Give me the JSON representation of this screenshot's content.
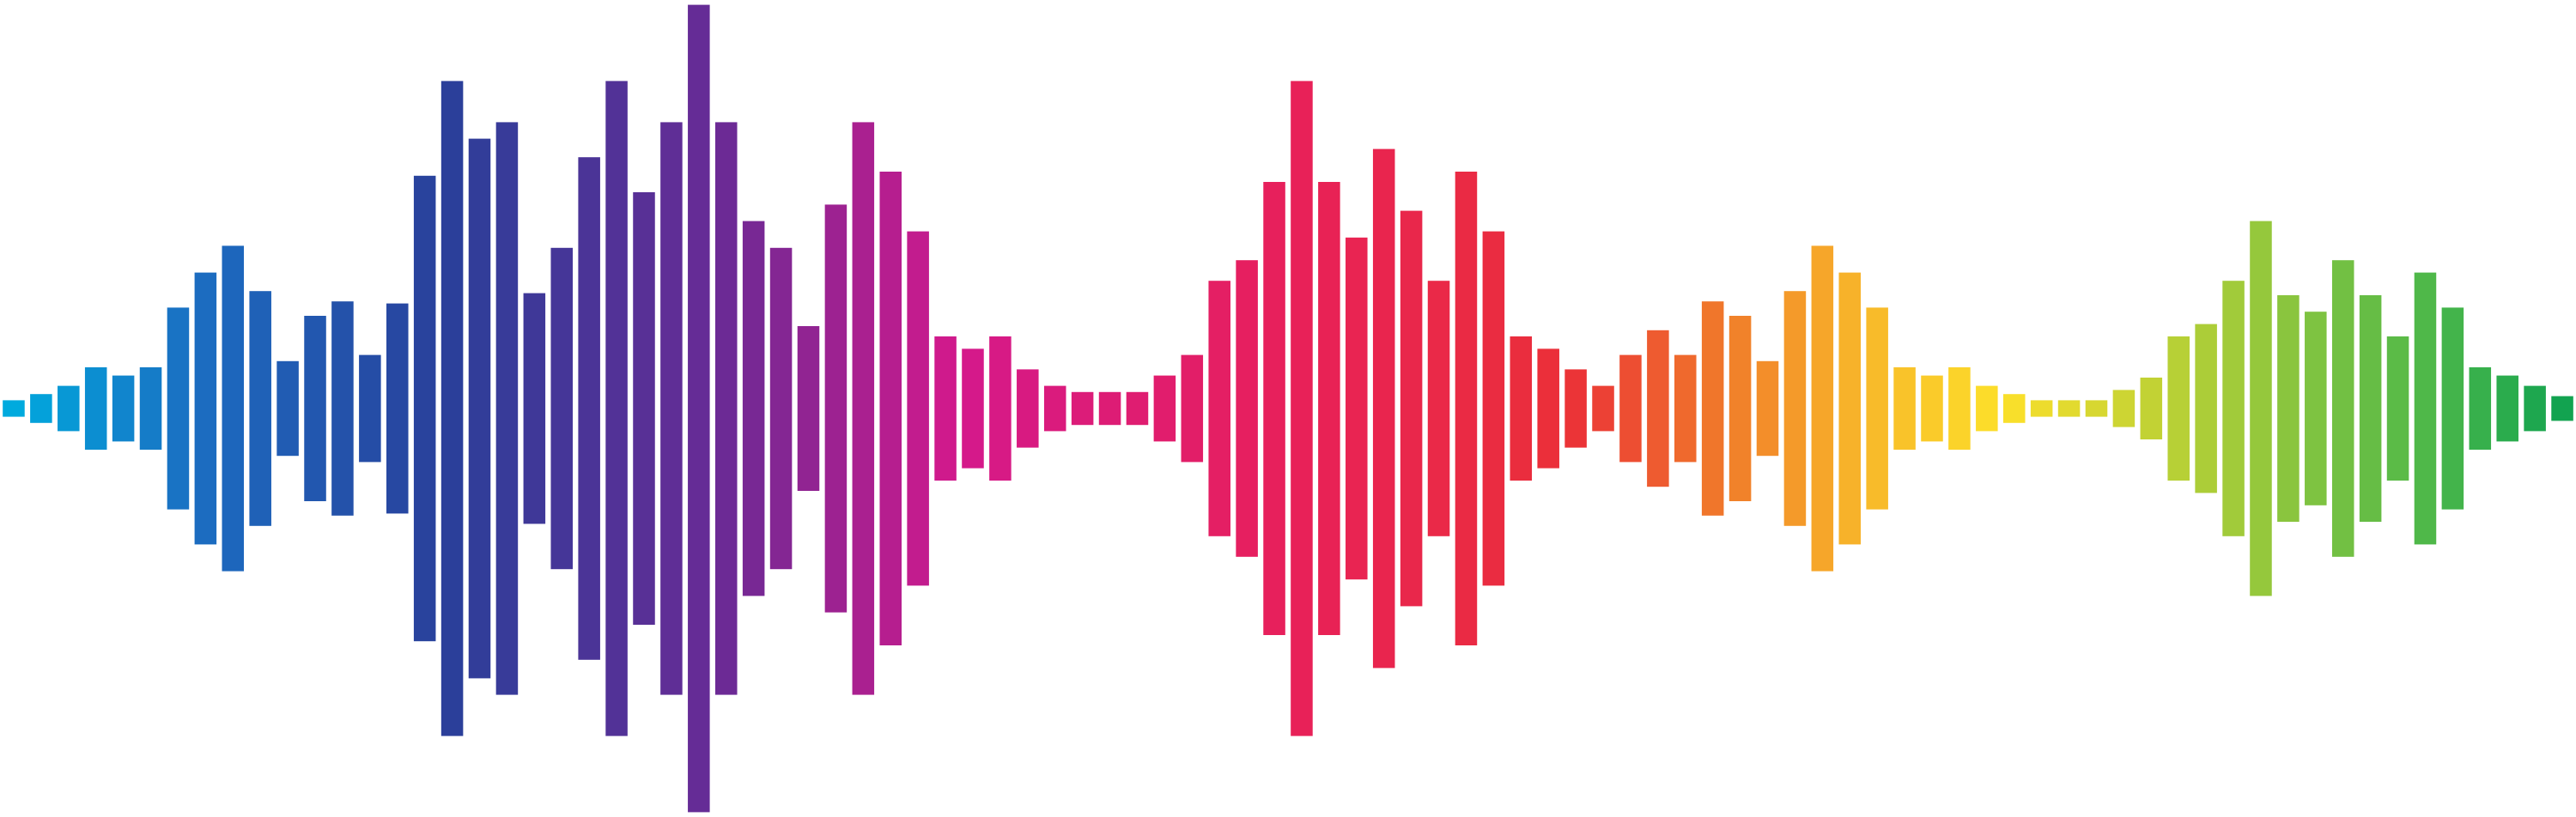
{
  "levels": [
    0.04,
    0.07,
    0.11,
    0.2,
    0.16,
    0.2,
    0.49,
    0.66,
    0.79,
    0.57,
    0.23,
    0.45,
    0.52,
    0.26,
    0.51,
    1.13,
    1.59,
    1.31,
    1.39,
    0.56,
    0.78,
    1.22,
    1.59,
    1.05,
    1.39,
    1.96,
    1.39,
    0.91,
    0.78,
    0.4,
    0.99,
    1.39,
    1.15,
    0.86,
    0.35,
    0.29,
    0.35,
    0.19,
    0.11,
    0.08,
    0.08,
    0.08,
    0.16,
    0.26,
    0.62,
    0.72,
    1.1,
    1.59,
    1.1,
    0.83,
    1.26,
    0.96,
    0.62,
    1.15,
    0.86,
    0.35,
    0.29,
    0.19,
    0.11,
    0.26,
    0.38,
    0.26,
    0.52,
    0.45,
    0.23,
    0.57,
    0.79,
    0.66,
    0.49,
    0.2,
    0.16,
    0.2,
    0.11,
    0.07,
    0.04,
    0.04,
    0.04,
    0.09,
    0.15,
    0.35,
    0.41,
    0.62,
    0.91,
    0.55,
    0.47,
    0.72,
    0.55,
    0.35,
    0.66,
    0.49,
    0.2,
    0.16,
    0.11,
    0.06
  ],
  "colors": {
    "start": "#00aade",
    "blue": "#1b6ec2",
    "navy": "#2a3f9a",
    "purple": "#6c2a95",
    "magenta": "#d4198c",
    "crimson": "#e8205a",
    "red": "#eb3038",
    "orange": "#f07a2a",
    "gold": "#f7b22a",
    "yellow": "#fde02a",
    "lime": "#a2cb3a",
    "green": "#4bb74a",
    "end": "#12a350"
  }
}
